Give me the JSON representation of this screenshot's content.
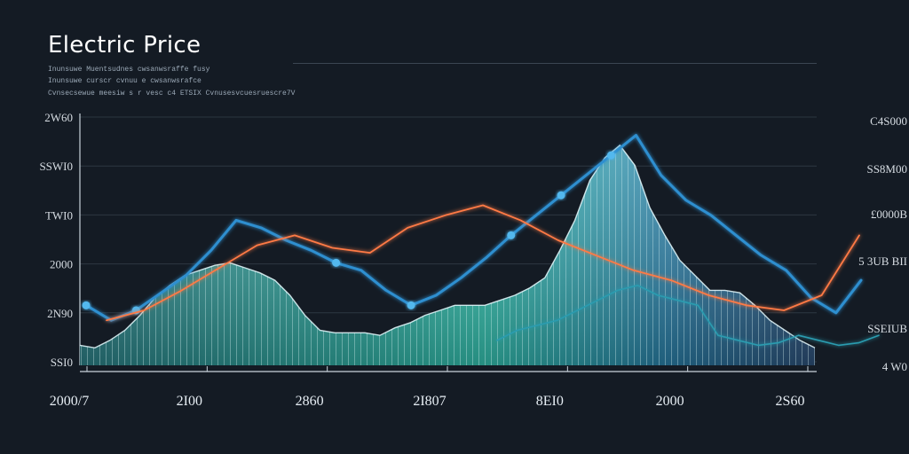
{
  "header": {
    "title": "Electric Price",
    "subtitle_lines": [
      "Inunsuwe Muentsudnes cwsanwsraffe fusy",
      "Inunsuwe curscr cvnuu e cwsanwsrafce",
      "Cvnsecsewue meesiw s r vesc c4 ETSIX Cvnusesvcuesruescre7V"
    ]
  },
  "chart_data": {
    "type": "area",
    "title": "Electric Price",
    "xlabel": "",
    "ylabel": "",
    "y_tick_labels_left": [
      "2W60",
      "SSWI0",
      "TWI0",
      "2000",
      "2N90",
      "SSI0"
    ],
    "y_tick_labels_right": [
      "C4S000",
      "SS8M00",
      "£0000B",
      "5 3UB BII",
      "SSEIUB",
      "4 W0"
    ],
    "x_tick_labels": [
      "2000/7",
      "2I00",
      "2860",
      "2I807",
      "8EI0",
      "2000",
      "2S60"
    ],
    "ylim": [
      0,
      100
    ],
    "grid": true,
    "colors": {
      "area_top": "#36c9b4",
      "area_bottom": "#2c5f74",
      "line_main": "#2f8fd0",
      "line_orange": "#ff7a45",
      "line_teal": "#2a9cb0",
      "marker": "#52b8ee"
    },
    "series": [
      {
        "values": [
          8,
          7,
          10,
          14,
          20,
          27,
          32,
          36,
          38,
          40,
          41,
          39,
          37,
          34,
          28,
          20,
          14,
          13,
          13,
          13,
          12,
          15,
          17,
          20,
          22,
          24,
          24,
          24,
          26,
          28,
          31,
          35,
          46,
          58,
          74,
          83,
          88,
          80,
          63,
          52,
          42,
          36,
          30,
          30,
          29,
          24,
          18,
          14,
          10,
          7
        ]
      },
      {
        "values": [
          24,
          18,
          22,
          29,
          36,
          46,
          58,
          55,
          50,
          46,
          41,
          38,
          30,
          24,
          28,
          35,
          43,
          52,
          60,
          68,
          76,
          84,
          92,
          76,
          66,
          60,
          52,
          44,
          38,
          27,
          21,
          34
        ]
      },
      {
        "values": [
          18,
          22,
          30,
          39,
          48,
          52,
          47,
          45,
          55,
          60,
          64,
          58,
          50,
          44,
          38,
          34,
          28,
          24,
          22,
          28,
          52
        ]
      },
      {
        "values": [
          10,
          14,
          16,
          18,
          22,
          26,
          30,
          32,
          28,
          26,
          24,
          12,
          10,
          8,
          9,
          12,
          10,
          8,
          9,
          12
        ]
      }
    ]
  }
}
